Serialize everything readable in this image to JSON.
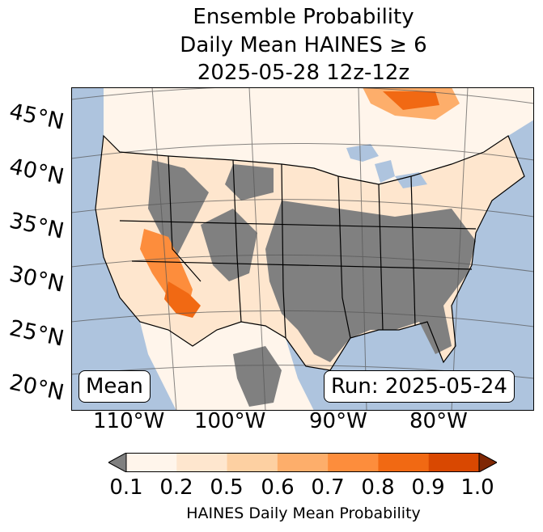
{
  "title": {
    "line1": "Ensemble Probability",
    "line2": "Daily Mean HAINES ≥ 6",
    "line3": "2025-05-28 12z-12z"
  },
  "latitude_labels": [
    "45°N",
    "40°N",
    "35°N",
    "30°N",
    "25°N",
    "20°N"
  ],
  "longitude_labels": [
    "110°W",
    "100°W",
    "90°W",
    "80°W"
  ],
  "mean_label": "Mean",
  "run_label": "Run: 2025-05-24",
  "colorbar": {
    "ticks": [
      "0.1",
      "0.2",
      "0.5",
      "0.6",
      "0.7",
      "0.8",
      "0.9",
      "1.0"
    ],
    "label": "HAINES Daily Mean Probability",
    "under_color": "#808080",
    "colors": [
      "#fff5eb",
      "#fee6ce",
      "#fdd0a2",
      "#fdae6b",
      "#fd8d3c",
      "#f16913",
      "#d94801"
    ],
    "over_color": "#7f2704"
  },
  "map_colors": {
    "ocean": "#aec4de",
    "masked": "#808080",
    "land_low": "#fff5eb"
  }
}
